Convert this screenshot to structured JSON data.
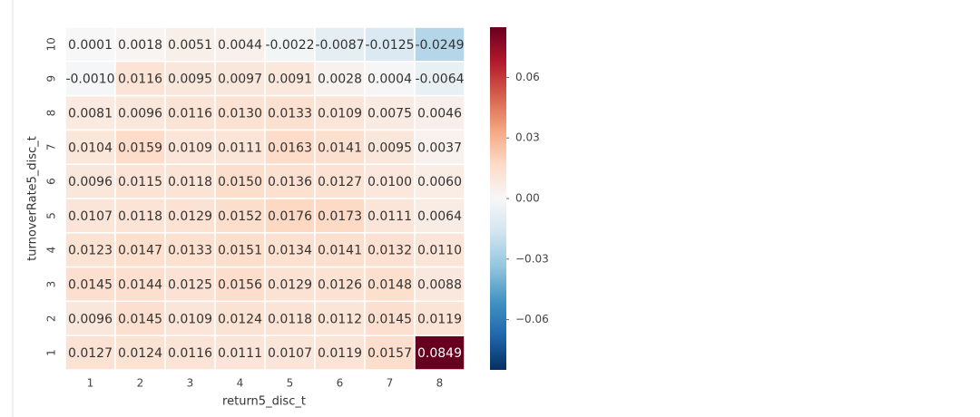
{
  "chart_data": {
    "type": "heatmap",
    "x_label": "return5_disc_t",
    "y_label": "turnoverRate5_disc_t",
    "x_categories": [
      "1",
      "2",
      "3",
      "4",
      "5",
      "6",
      "7",
      "8"
    ],
    "y_categories": [
      "10",
      "9",
      "8",
      "7",
      "6",
      "5",
      "4",
      "3",
      "2",
      "1"
    ],
    "values": [
      [
        0.0001,
        0.0018,
        0.0051,
        0.0044,
        -0.0022,
        -0.0087,
        -0.0125,
        -0.0249
      ],
      [
        -0.001,
        0.0116,
        0.0095,
        0.0097,
        0.0091,
        0.0028,
        0.0004,
        -0.0064
      ],
      [
        0.0081,
        0.0096,
        0.0116,
        0.013,
        0.0133,
        0.0109,
        0.0075,
        0.0046
      ],
      [
        0.0104,
        0.0159,
        0.0109,
        0.0111,
        0.0163,
        0.0141,
        0.0095,
        0.0037
      ],
      [
        0.0096,
        0.0115,
        0.0118,
        0.015,
        0.0136,
        0.0127,
        0.01,
        0.006
      ],
      [
        0.0107,
        0.0118,
        0.0129,
        0.0152,
        0.0176,
        0.0173,
        0.0111,
        0.0064
      ],
      [
        0.0123,
        0.0147,
        0.0133,
        0.0151,
        0.0134,
        0.0141,
        0.0132,
        0.011
      ],
      [
        0.0145,
        0.0144,
        0.0125,
        0.0156,
        0.0129,
        0.0126,
        0.0148,
        0.0088
      ],
      [
        0.0096,
        0.0145,
        0.0109,
        0.0124,
        0.0118,
        0.0112,
        0.0145,
        0.0119
      ],
      [
        0.0127,
        0.0124,
        0.0116,
        0.0111,
        0.0107,
        0.0119,
        0.0157,
        0.0849
      ]
    ],
    "value_labels": [
      [
        "0.0001",
        "0.0018",
        "0.0051",
        "0.0044",
        "-0.0022",
        "-0.0087",
        "-0.0125",
        "-0.0249"
      ],
      [
        "-0.0010",
        "0.0116",
        "0.0095",
        "0.0097",
        "0.0091",
        "0.0028",
        "0.0004",
        "-0.0064"
      ],
      [
        "0.0081",
        "0.0096",
        "0.0116",
        "0.0130",
        "0.0133",
        "0.0109",
        "0.0075",
        "0.0046"
      ],
      [
        "0.0104",
        "0.0159",
        "0.0109",
        "0.0111",
        "0.0163",
        "0.0141",
        "0.0095",
        "0.0037"
      ],
      [
        "0.0096",
        "0.0115",
        "0.0118",
        "0.0150",
        "0.0136",
        "0.0127",
        "0.0100",
        "0.0060"
      ],
      [
        "0.0107",
        "0.0118",
        "0.0129",
        "0.0152",
        "0.0176",
        "0.0173",
        "0.0111",
        "0.0064"
      ],
      [
        "0.0123",
        "0.0147",
        "0.0133",
        "0.0151",
        "0.0134",
        "0.0141",
        "0.0132",
        "0.0110"
      ],
      [
        "0.0145",
        "0.0144",
        "0.0125",
        "0.0156",
        "0.0129",
        "0.0126",
        "0.0148",
        "0.0088"
      ],
      [
        "0.0096",
        "0.0145",
        "0.0109",
        "0.0124",
        "0.0118",
        "0.0112",
        "0.0145",
        "0.0119"
      ],
      [
        "0.0127",
        "0.0124",
        "0.0116",
        "0.0111",
        "0.0107",
        "0.0119",
        "0.0157",
        "0.0849"
      ]
    ],
    "clim": [
      -0.0849,
      0.0849
    ],
    "cticks": [
      {
        "value": -0.06,
        "label": "−0.06"
      },
      {
        "value": -0.03,
        "label": "−0.03"
      },
      {
        "value": 0,
        "label": "0.00"
      },
      0.03,
      0.06
    ],
    "colormap": [
      "#053061",
      "#2166ac",
      "#4393c3",
      "#92c5de",
      "#d1e5f0",
      "#f7f7f7",
      "#fddbc7",
      "#f4a582",
      "#d6604d",
      "#b2182b",
      "#67001f"
    ]
  }
}
